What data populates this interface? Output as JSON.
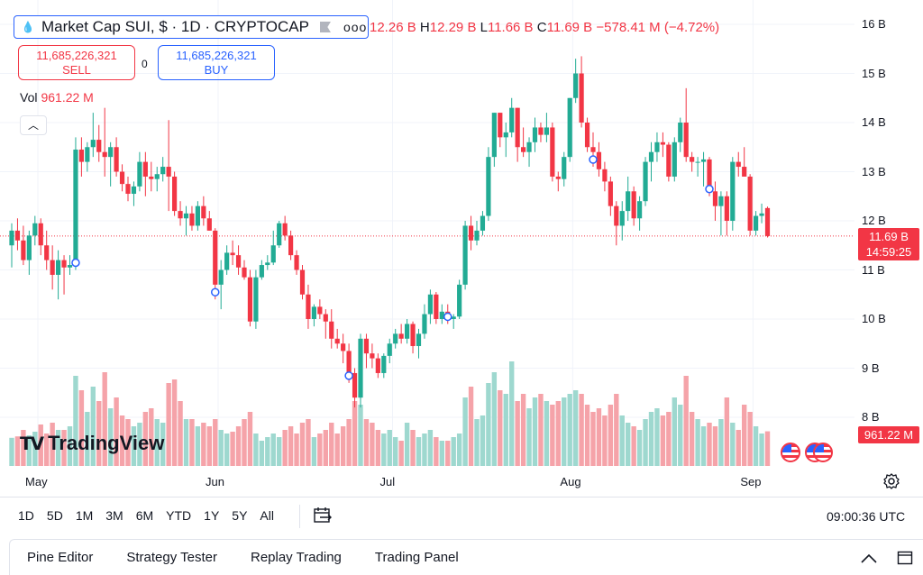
{
  "legend": {
    "symbol": "Market Cap SUI, $ · 1D · CRYPTOCAP",
    "more": "ooo",
    "open": "12.26 B",
    "high": "12.29 B",
    "low": "11.66 B",
    "close": "11.69 B",
    "change": "−578.41 M (−4.72%)"
  },
  "trade": {
    "sell_price": "11,685,226,321",
    "sell_label": "SELL",
    "spread": "0",
    "buy_price": "11,685,226,321",
    "buy_label": "BUY"
  },
  "volume_legend": {
    "label": "Vol",
    "value": "961.22 M"
  },
  "current": {
    "price": "11.69 B",
    "countdown": "14:59:25",
    "volume": "961.22 M"
  },
  "logo": {
    "text": "TradingView"
  },
  "ranges": [
    "1D",
    "5D",
    "1M",
    "3M",
    "6M",
    "YTD",
    "1Y",
    "5Y",
    "All"
  ],
  "clock": "09:00:36 UTC",
  "bottom_tabs": [
    "Pine Editor",
    "Strategy Tester",
    "Replay Trading",
    "Trading Panel"
  ],
  "colors": {
    "up": "#22ab94",
    "down": "#f23645",
    "vol_up": "#9ed8cf",
    "vol_down": "#f5a3a9",
    "accent": "#2962ff"
  },
  "chart_data": {
    "type": "candlestick",
    "title": "Market Cap SUI, $ · 1D · CRYPTOCAP",
    "y_unit": "billion USD",
    "ylim": [
      7.5,
      16.3
    ],
    "y_ticks": [
      "16 B",
      "15 B",
      "14 B",
      "13 B",
      "12 B",
      "11 B",
      "10 B",
      "9 B",
      "8 B"
    ],
    "y_tick_values": [
      16,
      15,
      14,
      13,
      12,
      11,
      10,
      9,
      8
    ],
    "x_ticks": [
      {
        "label": "May",
        "index": 4.5
      },
      {
        "label": "Jun",
        "index": 35.5
      },
      {
        "label": "Jul",
        "index": 65.5
      },
      {
        "label": "Aug",
        "index": 96.5
      },
      {
        "label": "Sep",
        "index": 127.5
      }
    ],
    "volume_ylim_millions": [
      0,
      3000
    ],
    "candles": [
      {
        "o": 11.5,
        "h": 11.95,
        "l": 11.05,
        "c": 11.8,
        "v": 780
      },
      {
        "o": 11.8,
        "h": 12.05,
        "l": 11.4,
        "c": 11.6,
        "v": 820
      },
      {
        "o": 11.6,
        "h": 11.9,
        "l": 11.1,
        "c": 11.2,
        "v": 1000
      },
      {
        "o": 11.2,
        "h": 11.8,
        "l": 10.9,
        "c": 11.7,
        "v": 850
      },
      {
        "o": 11.7,
        "h": 12.1,
        "l": 11.5,
        "c": 11.95,
        "v": 950
      },
      {
        "o": 11.95,
        "h": 12.05,
        "l": 11.3,
        "c": 11.5,
        "v": 1150
      },
      {
        "o": 11.5,
        "h": 11.8,
        "l": 11.0,
        "c": 11.2,
        "v": 900
      },
      {
        "o": 11.2,
        "h": 11.5,
        "l": 10.6,
        "c": 10.9,
        "v": 1200
      },
      {
        "o": 10.9,
        "h": 11.4,
        "l": 10.4,
        "c": 11.2,
        "v": 1000
      },
      {
        "o": 11.2,
        "h": 11.3,
        "l": 10.5,
        "c": 11.05,
        "v": 1000
      },
      {
        "o": 11.05,
        "h": 11.3,
        "l": 10.9,
        "c": 11.1,
        "v": 1100
      },
      {
        "o": 11.1,
        "h": 13.7,
        "l": 11.0,
        "c": 13.45,
        "v": 2500
      },
      {
        "o": 13.45,
        "h": 13.7,
        "l": 12.9,
        "c": 13.2,
        "v": 2100
      },
      {
        "o": 13.2,
        "h": 13.6,
        "l": 13.0,
        "c": 13.5,
        "v": 1500
      },
      {
        "o": 13.5,
        "h": 14.2,
        "l": 13.3,
        "c": 13.65,
        "v": 2200
      },
      {
        "o": 13.65,
        "h": 13.95,
        "l": 13.2,
        "c": 13.4,
        "v": 1800
      },
      {
        "o": 13.4,
        "h": 14.3,
        "l": 12.9,
        "c": 13.3,
        "v": 2600
      },
      {
        "o": 13.3,
        "h": 13.6,
        "l": 12.7,
        "c": 13.5,
        "v": 1600
      },
      {
        "o": 13.5,
        "h": 13.7,
        "l": 12.9,
        "c": 13.0,
        "v": 1900
      },
      {
        "o": 13.0,
        "h": 13.15,
        "l": 12.6,
        "c": 12.75,
        "v": 1400
      },
      {
        "o": 12.75,
        "h": 12.9,
        "l": 12.4,
        "c": 12.55,
        "v": 1300
      },
      {
        "o": 12.55,
        "h": 12.8,
        "l": 12.3,
        "c": 12.7,
        "v": 1100
      },
      {
        "o": 12.7,
        "h": 13.4,
        "l": 12.6,
        "c": 13.2,
        "v": 1200
      },
      {
        "o": 13.2,
        "h": 13.4,
        "l": 12.5,
        "c": 12.9,
        "v": 1500
      },
      {
        "o": 12.9,
        "h": 13.2,
        "l": 12.6,
        "c": 12.85,
        "v": 1600
      },
      {
        "o": 12.85,
        "h": 13.1,
        "l": 12.6,
        "c": 12.95,
        "v": 1300
      },
      {
        "o": 12.95,
        "h": 13.3,
        "l": 12.8,
        "c": 13.1,
        "v": 1200
      },
      {
        "o": 13.1,
        "h": 14.05,
        "l": 12.2,
        "c": 12.9,
        "v": 2300
      },
      {
        "o": 12.9,
        "h": 13.0,
        "l": 12.1,
        "c": 12.2,
        "v": 2400
      },
      {
        "o": 12.2,
        "h": 12.4,
        "l": 11.9,
        "c": 12.05,
        "v": 1800
      },
      {
        "o": 12.05,
        "h": 12.3,
        "l": 11.7,
        "c": 12.15,
        "v": 1300
      },
      {
        "o": 12.15,
        "h": 12.3,
        "l": 11.8,
        "c": 11.9,
        "v": 1300
      },
      {
        "o": 11.9,
        "h": 12.4,
        "l": 11.8,
        "c": 12.3,
        "v": 1100
      },
      {
        "o": 12.3,
        "h": 12.5,
        "l": 11.9,
        "c": 12.05,
        "v": 1200
      },
      {
        "o": 12.05,
        "h": 12.2,
        "l": 11.8,
        "c": 11.8,
        "v": 1100
      },
      {
        "o": 11.8,
        "h": 11.85,
        "l": 10.4,
        "c": 10.7,
        "v": 1300
      },
      {
        "o": 10.7,
        "h": 11.2,
        "l": 10.2,
        "c": 11.0,
        "v": 1000
      },
      {
        "o": 11.0,
        "h": 11.5,
        "l": 10.9,
        "c": 11.35,
        "v": 900
      },
      {
        "o": 11.35,
        "h": 11.6,
        "l": 11.1,
        "c": 11.3,
        "v": 950
      },
      {
        "o": 11.3,
        "h": 11.5,
        "l": 10.9,
        "c": 11.05,
        "v": 1100
      },
      {
        "o": 11.05,
        "h": 11.2,
        "l": 10.8,
        "c": 10.85,
        "v": 1300
      },
      {
        "o": 10.85,
        "h": 11.0,
        "l": 9.85,
        "c": 9.95,
        "v": 1500
      },
      {
        "o": 9.95,
        "h": 11.0,
        "l": 9.8,
        "c": 10.85,
        "v": 900
      },
      {
        "o": 10.85,
        "h": 11.2,
        "l": 10.8,
        "c": 11.1,
        "v": 700
      },
      {
        "o": 11.1,
        "h": 11.3,
        "l": 11.0,
        "c": 11.15,
        "v": 800
      },
      {
        "o": 11.15,
        "h": 11.8,
        "l": 11.1,
        "c": 11.5,
        "v": 900
      },
      {
        "o": 11.5,
        "h": 12.0,
        "l": 11.45,
        "c": 11.95,
        "v": 800
      },
      {
        "o": 11.95,
        "h": 12.1,
        "l": 11.6,
        "c": 11.7,
        "v": 1000
      },
      {
        "o": 11.7,
        "h": 11.8,
        "l": 11.2,
        "c": 11.3,
        "v": 1100
      },
      {
        "o": 11.3,
        "h": 11.4,
        "l": 10.9,
        "c": 11.0,
        "v": 900
      },
      {
        "o": 11.0,
        "h": 11.1,
        "l": 10.4,
        "c": 10.5,
        "v": 1200
      },
      {
        "o": 10.5,
        "h": 10.7,
        "l": 9.8,
        "c": 10.0,
        "v": 1300
      },
      {
        "o": 10.0,
        "h": 10.3,
        "l": 9.85,
        "c": 10.25,
        "v": 800
      },
      {
        "o": 10.25,
        "h": 10.4,
        "l": 10.0,
        "c": 10.1,
        "v": 900
      },
      {
        "o": 10.1,
        "h": 10.2,
        "l": 9.6,
        "c": 9.95,
        "v": 1000
      },
      {
        "o": 9.95,
        "h": 10.2,
        "l": 9.4,
        "c": 9.6,
        "v": 1200
      },
      {
        "o": 9.6,
        "h": 9.8,
        "l": 9.4,
        "c": 9.5,
        "v": 900
      },
      {
        "o": 9.5,
        "h": 9.7,
        "l": 9.1,
        "c": 9.35,
        "v": 1100
      },
      {
        "o": 9.35,
        "h": 9.5,
        "l": 8.7,
        "c": 8.9,
        "v": 1300
      },
      {
        "o": 8.9,
        "h": 9.0,
        "l": 8.2,
        "c": 8.4,
        "v": 1800
      },
      {
        "o": 8.4,
        "h": 9.7,
        "l": 8.2,
        "c": 9.6,
        "v": 1700
      },
      {
        "o": 9.6,
        "h": 9.7,
        "l": 9.0,
        "c": 9.3,
        "v": 1300
      },
      {
        "o": 9.3,
        "h": 9.5,
        "l": 9.0,
        "c": 9.2,
        "v": 1200
      },
      {
        "o": 9.2,
        "h": 9.3,
        "l": 8.8,
        "c": 8.9,
        "v": 1000
      },
      {
        "o": 8.9,
        "h": 9.3,
        "l": 8.8,
        "c": 9.25,
        "v": 900
      },
      {
        "o": 9.25,
        "h": 9.6,
        "l": 9.1,
        "c": 9.5,
        "v": 1000
      },
      {
        "o": 9.5,
        "h": 9.8,
        "l": 9.4,
        "c": 9.7,
        "v": 800
      },
      {
        "o": 9.7,
        "h": 9.9,
        "l": 9.5,
        "c": 9.6,
        "v": 700
      },
      {
        "o": 9.6,
        "h": 10.0,
        "l": 9.5,
        "c": 9.9,
        "v": 1200
      },
      {
        "o": 9.9,
        "h": 9.95,
        "l": 9.3,
        "c": 9.45,
        "v": 1000
      },
      {
        "o": 9.45,
        "h": 9.8,
        "l": 9.2,
        "c": 9.7,
        "v": 800
      },
      {
        "o": 9.7,
        "h": 10.3,
        "l": 9.6,
        "c": 10.1,
        "v": 900
      },
      {
        "o": 10.1,
        "h": 10.6,
        "l": 9.9,
        "c": 10.5,
        "v": 1000
      },
      {
        "o": 10.5,
        "h": 10.55,
        "l": 9.9,
        "c": 10.0,
        "v": 800
      },
      {
        "o": 10.0,
        "h": 10.3,
        "l": 9.9,
        "c": 10.15,
        "v": 700
      },
      {
        "o": 10.15,
        "h": 10.3,
        "l": 9.9,
        "c": 10.0,
        "v": 700
      },
      {
        "o": 10.0,
        "h": 10.1,
        "l": 9.8,
        "c": 10.05,
        "v": 800
      },
      {
        "o": 10.05,
        "h": 10.8,
        "l": 10.0,
        "c": 10.7,
        "v": 900
      },
      {
        "o": 10.7,
        "h": 12.0,
        "l": 10.6,
        "c": 11.9,
        "v": 1900
      },
      {
        "o": 11.9,
        "h": 12.1,
        "l": 11.4,
        "c": 11.6,
        "v": 2200
      },
      {
        "o": 11.6,
        "h": 12.0,
        "l": 11.5,
        "c": 11.8,
        "v": 1300
      },
      {
        "o": 11.8,
        "h": 12.2,
        "l": 11.7,
        "c": 12.1,
        "v": 1400
      },
      {
        "o": 12.1,
        "h": 13.5,
        "l": 12.0,
        "c": 13.3,
        "v": 2300
      },
      {
        "o": 13.3,
        "h": 14.2,
        "l": 13.1,
        "c": 14.2,
        "v": 2600
      },
      {
        "o": 14.2,
        "h": 14.2,
        "l": 13.5,
        "c": 13.7,
        "v": 2100
      },
      {
        "o": 13.7,
        "h": 14.0,
        "l": 13.3,
        "c": 13.8,
        "v": 2000
      },
      {
        "o": 13.8,
        "h": 14.5,
        "l": 13.7,
        "c": 14.3,
        "v": 2900
      },
      {
        "o": 14.3,
        "h": 14.3,
        "l": 13.2,
        "c": 13.5,
        "v": 1800
      },
      {
        "o": 13.5,
        "h": 13.9,
        "l": 13.3,
        "c": 13.4,
        "v": 2000
      },
      {
        "o": 13.4,
        "h": 13.7,
        "l": 13.1,
        "c": 13.6,
        "v": 1600
      },
      {
        "o": 13.6,
        "h": 14.1,
        "l": 13.4,
        "c": 13.9,
        "v": 1900
      },
      {
        "o": 13.9,
        "h": 14.0,
        "l": 13.6,
        "c": 13.75,
        "v": 2000
      },
      {
        "o": 13.75,
        "h": 14.2,
        "l": 13.6,
        "c": 13.9,
        "v": 1800
      },
      {
        "o": 13.9,
        "h": 14.0,
        "l": 12.8,
        "c": 12.9,
        "v": 1700
      },
      {
        "o": 12.9,
        "h": 13.0,
        "l": 12.6,
        "c": 12.85,
        "v": 1800
      },
      {
        "o": 12.85,
        "h": 13.4,
        "l": 12.7,
        "c": 13.3,
        "v": 1900
      },
      {
        "o": 13.3,
        "h": 14.5,
        "l": 13.2,
        "c": 14.5,
        "v": 2000
      },
      {
        "o": 14.5,
        "h": 15.3,
        "l": 14.4,
        "c": 15.0,
        "v": 2100
      },
      {
        "o": 15.0,
        "h": 15.35,
        "l": 13.9,
        "c": 14.0,
        "v": 2000
      },
      {
        "o": 14.0,
        "h": 14.1,
        "l": 13.4,
        "c": 13.5,
        "v": 1700
      },
      {
        "o": 13.5,
        "h": 13.8,
        "l": 13.1,
        "c": 13.4,
        "v": 1500
      },
      {
        "o": 13.4,
        "h": 13.6,
        "l": 12.9,
        "c": 13.05,
        "v": 1600
      },
      {
        "o": 13.05,
        "h": 13.2,
        "l": 12.6,
        "c": 12.8,
        "v": 1400
      },
      {
        "o": 12.8,
        "h": 12.9,
        "l": 12.1,
        "c": 12.3,
        "v": 1700
      },
      {
        "o": 12.3,
        "h": 12.4,
        "l": 11.5,
        "c": 11.9,
        "v": 2000
      },
      {
        "o": 11.9,
        "h": 12.4,
        "l": 11.6,
        "c": 12.2,
        "v": 1400
      },
      {
        "o": 12.2,
        "h": 12.9,
        "l": 12.0,
        "c": 12.6,
        "v": 1200
      },
      {
        "o": 12.6,
        "h": 12.7,
        "l": 11.9,
        "c": 12.05,
        "v": 1100
      },
      {
        "o": 12.05,
        "h": 12.5,
        "l": 11.8,
        "c": 12.4,
        "v": 1000
      },
      {
        "o": 12.4,
        "h": 13.3,
        "l": 12.3,
        "c": 13.2,
        "v": 1300
      },
      {
        "o": 13.2,
        "h": 13.6,
        "l": 12.8,
        "c": 13.4,
        "v": 1500
      },
      {
        "o": 13.4,
        "h": 13.8,
        "l": 13.2,
        "c": 13.6,
        "v": 1600
      },
      {
        "o": 13.6,
        "h": 13.8,
        "l": 13.3,
        "c": 13.55,
        "v": 1400
      },
      {
        "o": 13.55,
        "h": 13.6,
        "l": 12.8,
        "c": 12.9,
        "v": 1500
      },
      {
        "o": 12.9,
        "h": 13.7,
        "l": 12.8,
        "c": 13.6,
        "v": 1900
      },
      {
        "o": 13.6,
        "h": 14.1,
        "l": 13.4,
        "c": 14.0,
        "v": 1700
      },
      {
        "o": 14.0,
        "h": 14.7,
        "l": 13.2,
        "c": 13.3,
        "v": 2500
      },
      {
        "o": 13.3,
        "h": 13.4,
        "l": 13.0,
        "c": 13.2,
        "v": 1500
      },
      {
        "o": 13.2,
        "h": 13.3,
        "l": 12.9,
        "c": 13.2,
        "v": 1300
      },
      {
        "o": 13.2,
        "h": 13.4,
        "l": 12.7,
        "c": 13.25,
        "v": 1100
      },
      {
        "o": 13.25,
        "h": 13.3,
        "l": 12.5,
        "c": 12.6,
        "v": 1200
      },
      {
        "o": 12.6,
        "h": 12.8,
        "l": 12.0,
        "c": 12.3,
        "v": 1100
      },
      {
        "o": 12.3,
        "h": 12.6,
        "l": 11.7,
        "c": 12.5,
        "v": 1300
      },
      {
        "o": 12.5,
        "h": 12.6,
        "l": 11.7,
        "c": 12.0,
        "v": 1900
      },
      {
        "o": 12.0,
        "h": 13.3,
        "l": 11.8,
        "c": 13.2,
        "v": 1200
      },
      {
        "o": 13.2,
        "h": 13.4,
        "l": 12.9,
        "c": 13.1,
        "v": 1000
      },
      {
        "o": 13.1,
        "h": 13.5,
        "l": 12.9,
        "c": 12.9,
        "v": 1700
      },
      {
        "o": 12.9,
        "h": 12.95,
        "l": 11.7,
        "c": 11.8,
        "v": 1500
      },
      {
        "o": 11.8,
        "h": 12.2,
        "l": 11.7,
        "c": 12.1,
        "v": 1100
      },
      {
        "o": 12.1,
        "h": 12.35,
        "l": 11.95,
        "c": 12.15,
        "v": 900
      },
      {
        "o": 12.26,
        "h": 12.29,
        "l": 11.66,
        "c": 11.69,
        "v": 961
      }
    ],
    "markers_at_index": [
      11,
      35,
      58,
      75,
      100,
      120
    ]
  }
}
